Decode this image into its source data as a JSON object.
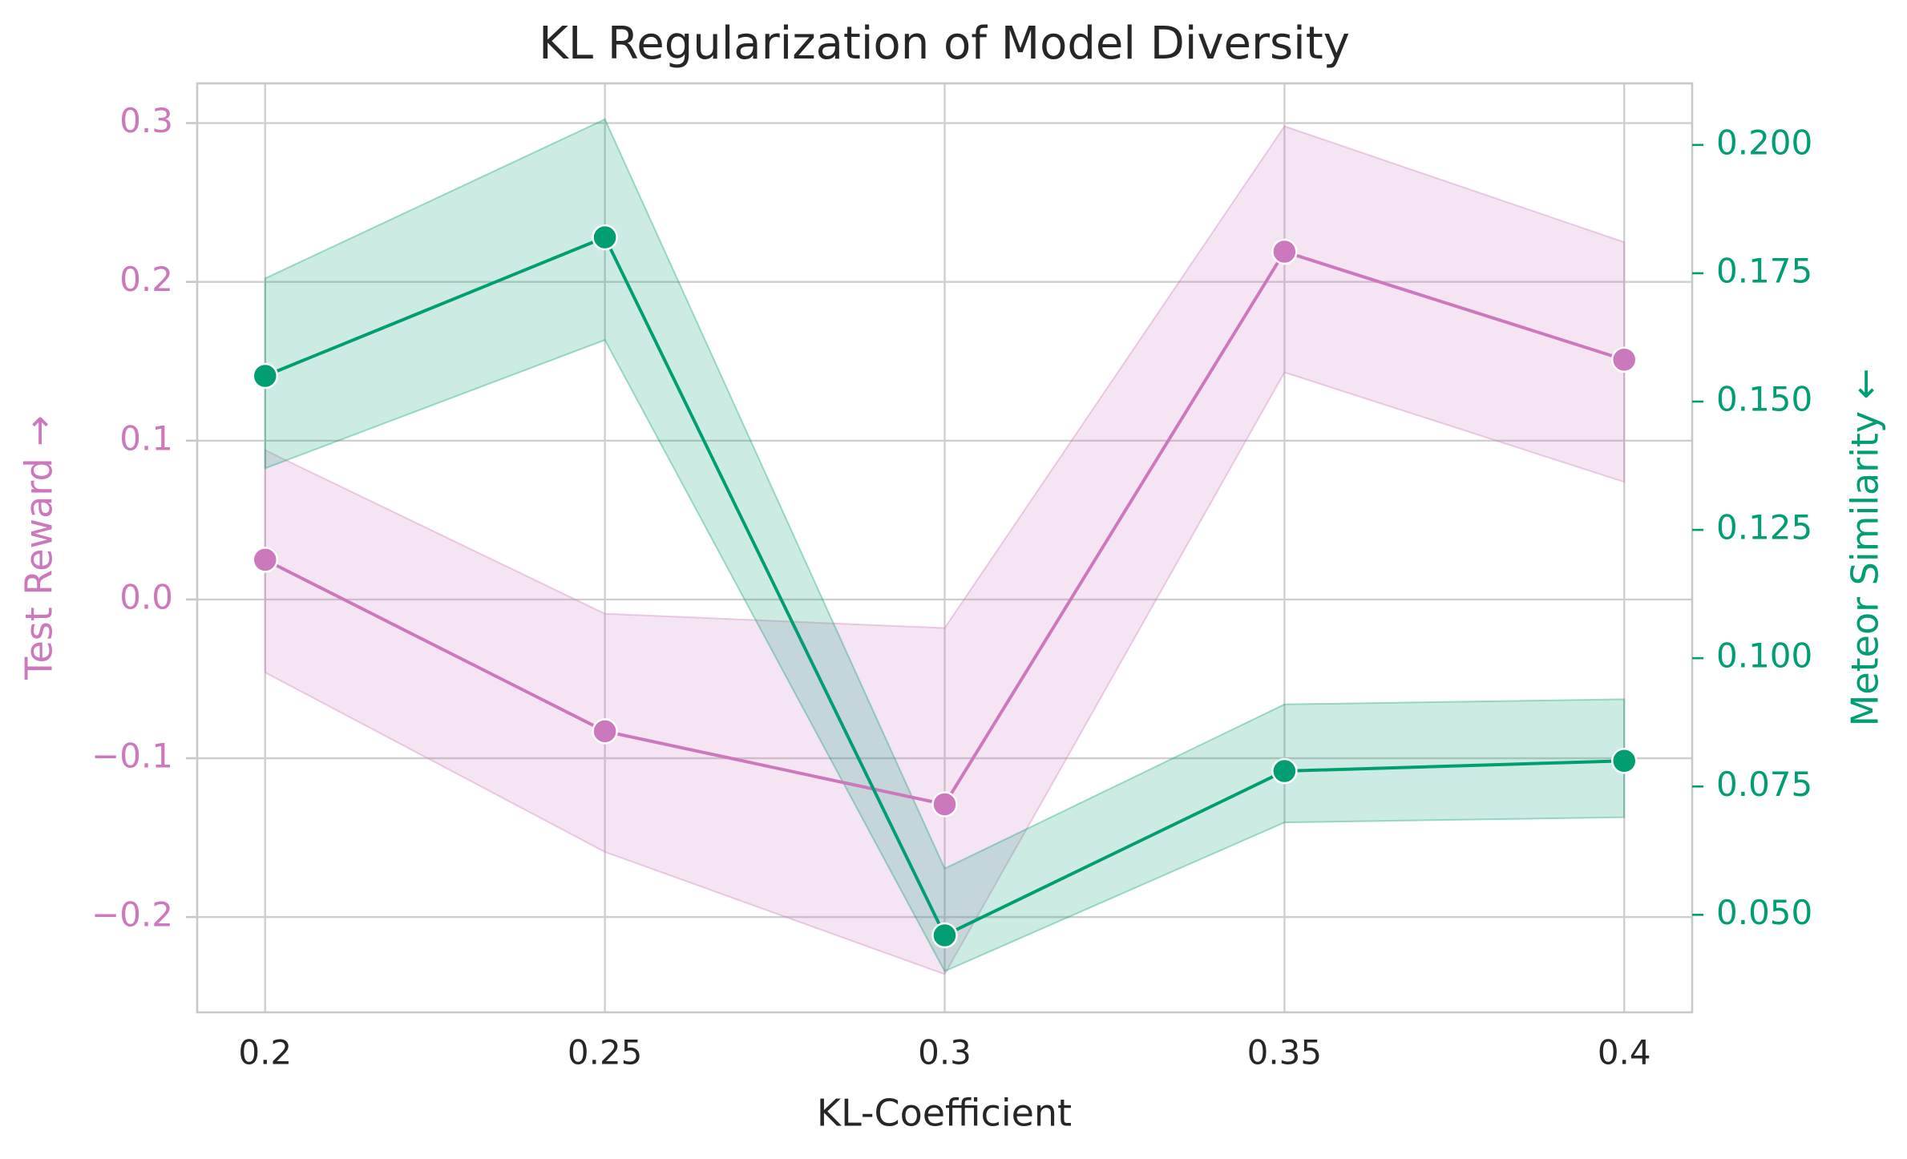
{
  "chart_data": {
    "type": "line",
    "title": "KL Regularization of Model Diversity",
    "xlabel": "KL-Coefficient",
    "x": [
      0.2,
      0.25,
      0.3,
      0.35,
      0.4
    ],
    "x_tick_labels": [
      "0.2",
      "0.25",
      "0.3",
      "0.35",
      "0.4"
    ],
    "xlim": [
      0.19,
      0.41
    ],
    "grid": true,
    "series": [
      {
        "ylabel": "Test Reward →",
        "axis": "left",
        "color": "#cc78bc",
        "values": [
          0.025,
          -0.083,
          -0.129,
          0.219,
          0.151
        ],
        "ci_lower": [
          -0.046,
          -0.159,
          -0.236,
          0.143,
          0.074
        ],
        "ci_upper": [
          0.094,
          -0.009,
          -0.018,
          0.298,
          0.225
        ],
        "ylim": [
          -0.26,
          0.325
        ],
        "y_ticks": [
          0.3,
          0.2,
          0.1,
          0.0,
          -0.1,
          -0.2
        ],
        "y_tick_labels": [
          "0.3",
          "0.2",
          "0.1",
          "0.0",
          "−0.1",
          "−0.2"
        ]
      },
      {
        "ylabel": "Meteor Similarity ←",
        "axis": "right",
        "color": "#029e73",
        "values": [
          0.155,
          0.182,
          0.046,
          0.078,
          0.08
        ],
        "ci_lower": [
          0.137,
          0.162,
          0.039,
          0.068,
          0.069
        ],
        "ci_upper": [
          0.174,
          0.205,
          0.059,
          0.091,
          0.092
        ],
        "ylim": [
          0.031,
          0.212
        ],
        "y_ticks": [
          0.2,
          0.175,
          0.15,
          0.125,
          0.1,
          0.075,
          0.05
        ],
        "y_tick_labels": [
          "0.200",
          "0.175",
          "0.150",
          "0.125",
          "0.100",
          "0.075",
          "0.050"
        ]
      }
    ]
  }
}
